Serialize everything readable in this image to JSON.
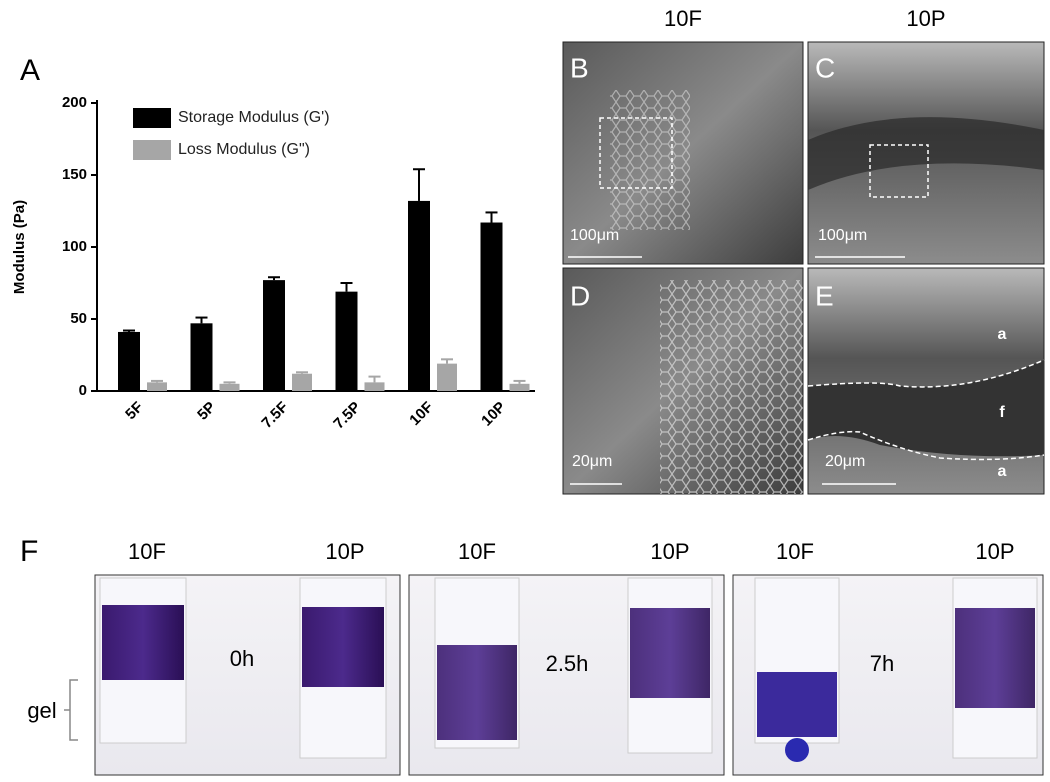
{
  "chart_data": {
    "type": "bar",
    "panel_label": "A",
    "y_label": "Modulus (Pa)",
    "categories": [
      "5F",
      "5P",
      "7.5F",
      "7.5P",
      "10F",
      "10P"
    ],
    "series": [
      {
        "name": "Storage Modulus (G')",
        "color": "#000000",
        "values": [
          41,
          47,
          77,
          69,
          132,
          117
        ],
        "errors": [
          1,
          4,
          2,
          6,
          22,
          7
        ]
      },
      {
        "name": "Loss Modulus (G\")",
        "color": "#a6a6a6",
        "values": [
          6,
          5,
          12,
          6,
          19,
          5
        ],
        "errors": [
          1,
          1,
          1,
          4,
          3,
          2
        ]
      }
    ],
    "ylim": [
      0,
      200
    ],
    "yticks": [
      0,
      50,
      100,
      150,
      200
    ],
    "legend": "upper-left"
  },
  "sem": {
    "column_titles": [
      "10F",
      "10P"
    ],
    "panels": [
      {
        "label": "B",
        "scale": "100μm"
      },
      {
        "label": "C",
        "scale": "100μm"
      },
      {
        "label": "D",
        "scale": "20μm"
      },
      {
        "label": "E",
        "scale": "20μm"
      }
    ],
    "annotations": [
      "a",
      "f",
      "a"
    ]
  },
  "photos": {
    "label": "F",
    "gel_label": "gel",
    "groups": [
      {
        "left": "10F",
        "right": "10P",
        "time": "0h"
      },
      {
        "left": "10F",
        "right": "10P",
        "time": "2.5h"
      },
      {
        "left": "10F",
        "right": "10P",
        "time": "7h"
      }
    ]
  }
}
